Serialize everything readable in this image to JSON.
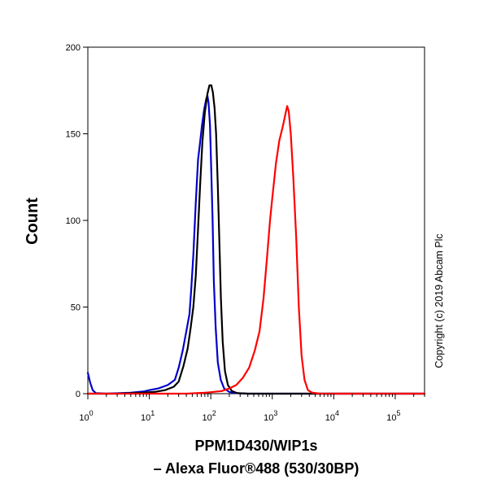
{
  "chart_data": {
    "type": "line",
    "ylabel": "Count",
    "xlabel_line1": "PPM1D430/WIP1s",
    "xlabel_line2": "– Alexa Fluor®488 (530/30BP)",
    "copyright": "Copyright (c) 2019 Abcam Plc",
    "x_scale": "log",
    "xlim": [
      1,
      300000
    ],
    "ylim": [
      0,
      200
    ],
    "y_ticks": [
      0,
      50,
      100,
      150,
      200
    ],
    "x_ticks": [
      {
        "value": 1,
        "base": "10",
        "exp": "0"
      },
      {
        "value": 10,
        "base": "10",
        "exp": "1"
      },
      {
        "value": 100,
        "base": "10",
        "exp": "2"
      },
      {
        "value": 1000,
        "base": "10",
        "exp": "3"
      },
      {
        "value": 10000,
        "base": "10",
        "exp": "4"
      },
      {
        "value": 100000,
        "base": "10",
        "exp": "5"
      }
    ],
    "grid": false,
    "series": [
      {
        "color": "#0000cc",
        "points": [
          [
            1,
            12
          ],
          [
            1.1,
            6
          ],
          [
            1.2,
            2
          ],
          [
            1.35,
            0.3
          ],
          [
            2,
            0
          ],
          [
            5,
            0.5
          ],
          [
            8,
            1.2
          ],
          [
            10,
            2
          ],
          [
            14,
            3
          ],
          [
            20,
            5
          ],
          [
            26,
            8
          ],
          [
            30,
            15
          ],
          [
            35,
            25
          ],
          [
            40,
            36
          ],
          [
            45,
            46
          ],
          [
            48,
            60
          ],
          [
            52,
            80
          ],
          [
            57,
            110
          ],
          [
            62,
            135
          ],
          [
            67,
            145
          ],
          [
            72,
            155
          ],
          [
            78,
            164
          ],
          [
            84,
            170
          ],
          [
            88,
            172
          ],
          [
            92,
            168
          ],
          [
            97,
            155
          ],
          [
            102,
            128
          ],
          [
            107,
            100
          ],
          [
            112,
            65
          ],
          [
            120,
            38
          ],
          [
            130,
            18
          ],
          [
            145,
            8
          ],
          [
            165,
            3
          ],
          [
            200,
            1
          ],
          [
            260,
            0.3
          ],
          [
            400,
            0
          ],
          [
            300000,
            0
          ]
        ]
      },
      {
        "color": "#000000",
        "points": [
          [
            1,
            0
          ],
          [
            3,
            0
          ],
          [
            8,
            0.5
          ],
          [
            12,
            1
          ],
          [
            18,
            2
          ],
          [
            25,
            4
          ],
          [
            30,
            7
          ],
          [
            36,
            16
          ],
          [
            42,
            26
          ],
          [
            47,
            38
          ],
          [
            52,
            50
          ],
          [
            57,
            68
          ],
          [
            62,
            95
          ],
          [
            67,
            120
          ],
          [
            73,
            145
          ],
          [
            80,
            162
          ],
          [
            88,
            173
          ],
          [
            95,
            178
          ],
          [
            102,
            178
          ],
          [
            108,
            174
          ],
          [
            115,
            165
          ],
          [
            122,
            150
          ],
          [
            130,
            120
          ],
          [
            138,
            88
          ],
          [
            146,
            55
          ],
          [
            156,
            30
          ],
          [
            170,
            13
          ],
          [
            190,
            5
          ],
          [
            220,
            1.5
          ],
          [
            270,
            0.3
          ],
          [
            400,
            0
          ],
          [
            300000,
            0
          ]
        ]
      },
      {
        "color": "#ff0000",
        "points": [
          [
            1,
            0
          ],
          [
            40,
            0
          ],
          [
            80,
            0.5
          ],
          [
            150,
            1.5
          ],
          [
            200,
            3
          ],
          [
            260,
            5
          ],
          [
            330,
            9
          ],
          [
            420,
            15
          ],
          [
            520,
            25
          ],
          [
            620,
            36
          ],
          [
            720,
            55
          ],
          [
            820,
            78
          ],
          [
            920,
            100
          ],
          [
            1000,
            113
          ],
          [
            1150,
            133
          ],
          [
            1300,
            146
          ],
          [
            1500,
            155
          ],
          [
            1650,
            162
          ],
          [
            1750,
            166
          ],
          [
            1850,
            163
          ],
          [
            2000,
            150
          ],
          [
            2200,
            125
          ],
          [
            2450,
            90
          ],
          [
            2700,
            50
          ],
          [
            3000,
            22
          ],
          [
            3350,
            8
          ],
          [
            3800,
            2
          ],
          [
            4500,
            0.5
          ],
          [
            6000,
            0
          ],
          [
            300000,
            0
          ]
        ]
      }
    ]
  }
}
